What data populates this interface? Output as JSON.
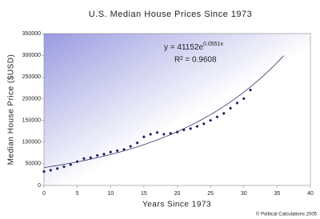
{
  "chart_data": {
    "type": "scatter",
    "title": "U.S. Median House Prices Since 1973",
    "x_label": "Years Since 1973",
    "y_label": "Median House Price ($USD)",
    "x": [
      0,
      1,
      2,
      3,
      4,
      5,
      6,
      7,
      8,
      9,
      10,
      11,
      12,
      13,
      14,
      15,
      16,
      17,
      18,
      19,
      20,
      21,
      22,
      23,
      24,
      25,
      26,
      27,
      28,
      29,
      30,
      31
    ],
    "series": [
      {
        "name": "Median House Price",
        "color": "#1a1a5e",
        "values": [
          32000,
          35000,
          39000,
          43000,
          48000,
          55000,
          62000,
          64000,
          69000,
          72000,
          77000,
          80000,
          83000,
          90000,
          98000,
          112000,
          118000,
          122000,
          118000,
          120000,
          123000,
          128000,
          131000,
          136000,
          142000,
          150000,
          158000,
          166000,
          178000,
          190000,
          200000,
          220000
        ]
      }
    ],
    "trendline": {
      "coefficient": 41152,
      "rate": 0.0551,
      "x": [
        0,
        36
      ],
      "color": "#333366",
      "equation": "y = 41152e",
      "exponent": "0.0551x",
      "r_squared": "R² = 0.9608"
    },
    "xlim": [
      0,
      40
    ],
    "xticks": [
      0,
      5,
      10,
      15,
      20,
      25,
      30,
      35,
      40
    ],
    "ylim": [
      0,
      350000
    ],
    "yticks": [
      0,
      50000,
      100000,
      150000,
      200000,
      250000,
      300000,
      350000
    ],
    "footer": "© Political Calculations 2005"
  }
}
